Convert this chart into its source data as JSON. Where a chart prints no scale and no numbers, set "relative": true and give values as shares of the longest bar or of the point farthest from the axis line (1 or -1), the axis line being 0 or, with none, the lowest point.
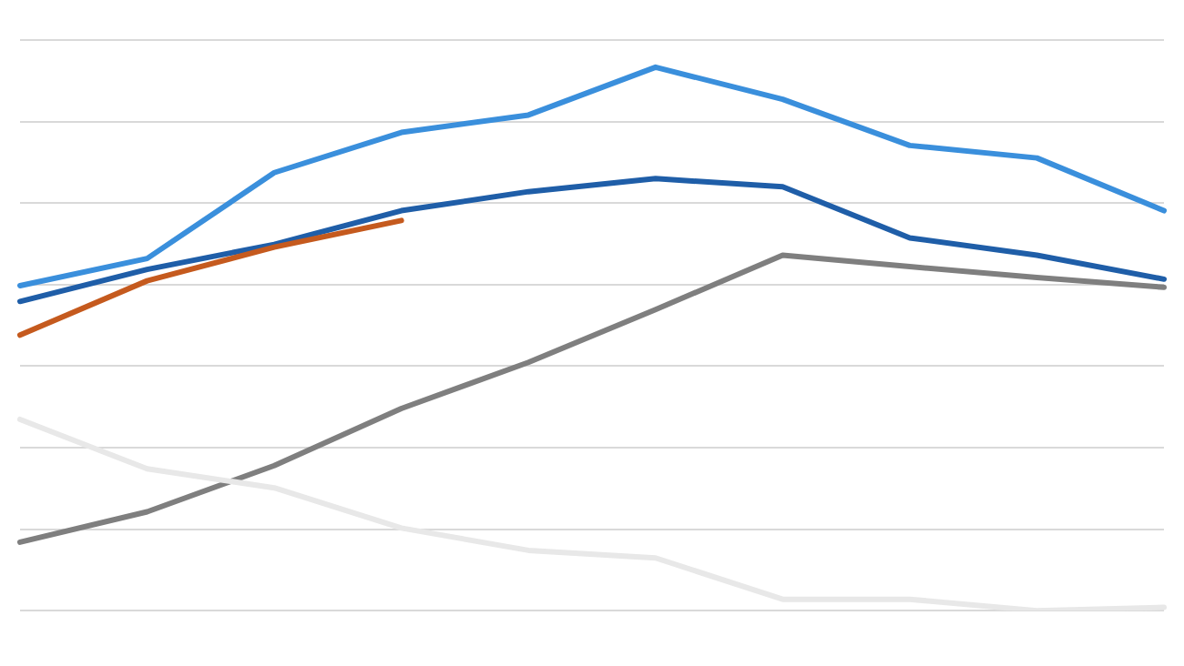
{
  "chart_data": {
    "type": "line",
    "relative": true,
    "grid": "y",
    "legend": false,
    "marker": "none",
    "line_style": "solid",
    "categories": [
      null,
      null,
      null,
      null,
      null,
      null,
      null,
      null,
      null,
      null
    ],
    "series": [
      {
        "color": "#e8e8e8",
        "values": [
          0.352,
          0.261,
          0.226,
          0.152,
          0.111,
          0.097,
          0.021,
          0.021,
          0,
          0.006
        ]
      },
      {
        "color": "#7f7f7f",
        "values": [
          0.126,
          0.182,
          0.267,
          0.372,
          0.457,
          0.554,
          0.654,
          0.633,
          0.613,
          0.595
        ]
      },
      {
        "color": "#c55a1e",
        "values": [
          0.507,
          0.607,
          0.669,
          0.718,
          null,
          null,
          null,
          null,
          null,
          null
        ]
      },
      {
        "color": "#1f5ea8",
        "values": [
          0.569,
          0.628,
          0.674,
          0.736,
          0.771,
          0.795,
          0.78,
          0.686,
          0.654,
          0.61
        ]
      },
      {
        "color": "#3a8fdc",
        "values": [
          0.598,
          0.648,
          0.806,
          0.88,
          0.912,
          1,
          0.941,
          0.856,
          0.833,
          0.736
        ]
      }
    ]
  }
}
